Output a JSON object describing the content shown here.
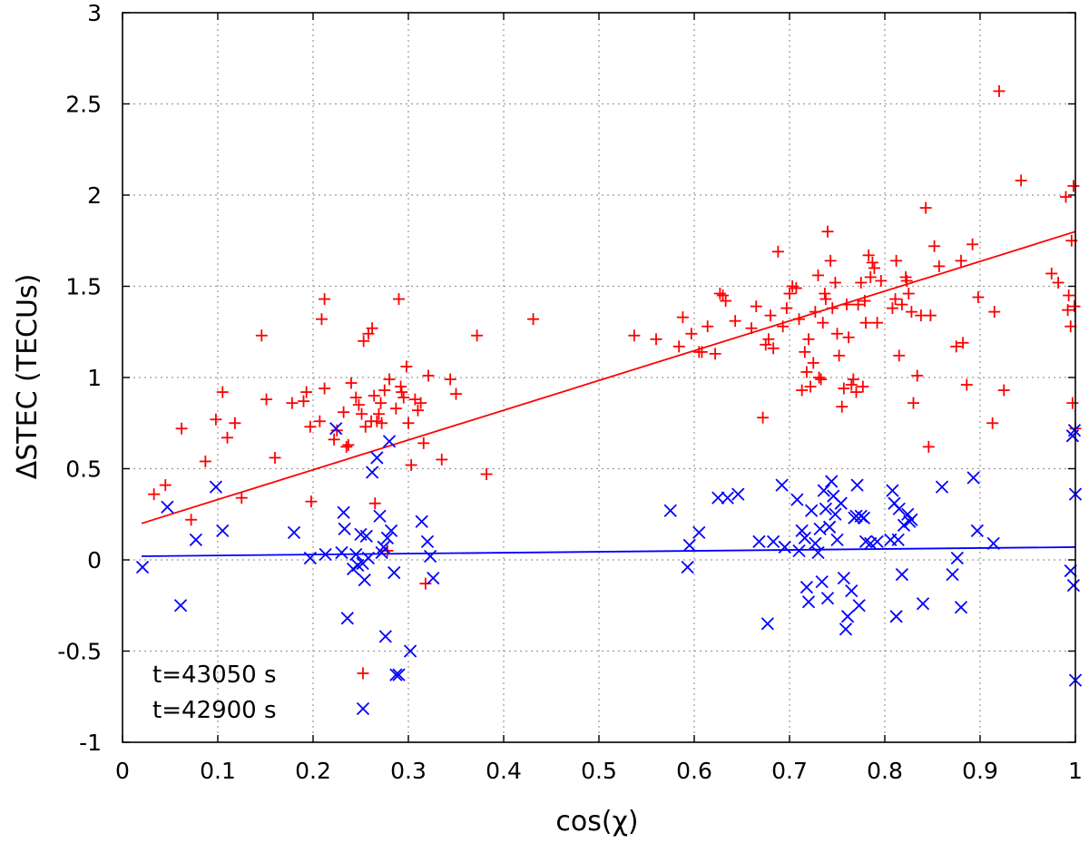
{
  "chart_data": {
    "type": "scatter",
    "title": "",
    "xlabel": "cos(χ)",
    "ylabel": "ΔSTEC (TECUs)",
    "xlim": [
      0,
      1
    ],
    "ylim": [
      -1,
      3
    ],
    "x_ticks": [
      "0",
      "0.1",
      "0.2",
      "0.3",
      "0.4",
      "0.5",
      "0.6",
      "0.7",
      "0.8",
      "0.9",
      "1"
    ],
    "y_ticks": [
      "-1",
      "-0.5",
      "0",
      "0.5",
      "1",
      "1.5",
      "2",
      "2.5",
      "3"
    ],
    "grid": true,
    "legend_position": "bottom-left",
    "series": [
      {
        "name": "t=43050 s",
        "marker": "plus",
        "color": "#ff0000",
        "fit_line": [
          [
            0.02,
            0.2
          ],
          [
            1.0,
            1.8
          ]
        ],
        "points": [
          [
            0.033,
            0.36
          ],
          [
            0.045,
            0.41
          ],
          [
            0.062,
            0.72
          ],
          [
            0.072,
            0.22
          ],
          [
            0.087,
            0.54
          ],
          [
            0.098,
            0.77
          ],
          [
            0.105,
            0.92
          ],
          [
            0.11,
            0.67
          ],
          [
            0.118,
            0.75
          ],
          [
            0.125,
            0.34
          ],
          [
            0.146,
            1.23
          ],
          [
            0.151,
            0.88
          ],
          [
            0.16,
            0.56
          ],
          [
            0.178,
            0.86
          ],
          [
            0.19,
            0.87
          ],
          [
            0.193,
            0.92
          ],
          [
            0.197,
            0.73
          ],
          [
            0.198,
            0.32
          ],
          [
            0.207,
            0.76
          ],
          [
            0.209,
            1.32
          ],
          [
            0.212,
            1.43
          ],
          [
            0.212,
            0.94
          ],
          [
            0.222,
            0.66
          ],
          [
            0.225,
            0.71
          ],
          [
            0.232,
            0.81
          ],
          [
            0.235,
            0.62
          ],
          [
            0.237,
            0.63
          ],
          [
            0.24,
            0.97
          ],
          [
            0.245,
            0.89
          ],
          [
            0.248,
            0.85
          ],
          [
            0.251,
            0.8
          ],
          [
            0.253,
            1.2
          ],
          [
            0.255,
            0.73
          ],
          [
            0.258,
            1.24
          ],
          [
            0.261,
            0.76
          ],
          [
            0.262,
            1.27
          ],
          [
            0.264,
            0.9
          ],
          [
            0.265,
            0.31
          ],
          [
            0.267,
            0.76
          ],
          [
            0.269,
            0.8
          ],
          [
            0.271,
            0.86
          ],
          [
            0.272,
            0.75
          ],
          [
            0.275,
            0.93
          ],
          [
            0.278,
            0.05
          ],
          [
            0.28,
            0.99
          ],
          [
            0.287,
            0.83
          ],
          [
            0.29,
            1.43
          ],
          [
            0.292,
            0.95
          ],
          [
            0.293,
            0.92
          ],
          [
            0.295,
            0.89
          ],
          [
            0.298,
            1.06
          ],
          [
            0.3,
            0.75
          ],
          [
            0.303,
            0.52
          ],
          [
            0.307,
            0.88
          ],
          [
            0.31,
            0.82
          ],
          [
            0.313,
            0.86
          ],
          [
            0.316,
            0.64
          ],
          [
            0.318,
            -0.13
          ],
          [
            0.321,
            1.01
          ],
          [
            0.335,
            0.55
          ],
          [
            0.344,
            0.99
          ],
          [
            0.35,
            0.91
          ],
          [
            0.372,
            1.23
          ],
          [
            0.382,
            0.47
          ],
          [
            0.431,
            1.32
          ],
          [
            0.537,
            1.23
          ],
          [
            0.56,
            1.21
          ],
          [
            0.584,
            1.17
          ],
          [
            0.588,
            1.33
          ],
          [
            0.597,
            1.24
          ],
          [
            0.605,
            1.14
          ],
          [
            0.608,
            1.14
          ],
          [
            0.614,
            1.28
          ],
          [
            0.622,
            1.13
          ],
          [
            0.627,
            1.46
          ],
          [
            0.63,
            1.45
          ],
          [
            0.633,
            1.42
          ],
          [
            0.643,
            1.31
          ],
          [
            0.66,
            1.27
          ],
          [
            0.665,
            1.39
          ],
          [
            0.672,
            0.78
          ],
          [
            0.675,
            1.18
          ],
          [
            0.678,
            1.21
          ],
          [
            0.68,
            1.34
          ],
          [
            0.683,
            1.16
          ],
          [
            0.688,
            1.69
          ],
          [
            0.693,
            1.28
          ],
          [
            0.697,
            1.38
          ],
          [
            0.7,
            1.46
          ],
          [
            0.703,
            1.5
          ],
          [
            0.707,
            1.49
          ],
          [
            0.71,
            1.32
          ],
          [
            0.713,
            0.93
          ],
          [
            0.716,
            1.14
          ],
          [
            0.718,
            1.03
          ],
          [
            0.72,
            1.21
          ],
          [
            0.722,
            0.95
          ],
          [
            0.725,
            1.08
          ],
          [
            0.727,
            1.36
          ],
          [
            0.73,
            1.56
          ],
          [
            0.731,
            1.0
          ],
          [
            0.733,
            0.99
          ],
          [
            0.735,
            1.3
          ],
          [
            0.737,
            1.46
          ],
          [
            0.738,
            1.43
          ],
          [
            0.74,
            1.8
          ],
          [
            0.743,
            1.64
          ],
          [
            0.745,
            1.38
          ],
          [
            0.748,
            1.52
          ],
          [
            0.75,
            1.24
          ],
          [
            0.752,
            1.12
          ],
          [
            0.755,
            0.84
          ],
          [
            0.757,
            0.94
          ],
          [
            0.76,
            1.4
          ],
          [
            0.762,
            1.22
          ],
          [
            0.765,
            0.96
          ],
          [
            0.767,
            0.99
          ],
          [
            0.77,
            0.92
          ],
          [
            0.772,
            1.4
          ],
          [
            0.775,
            1.52
          ],
          [
            0.777,
            0.95
          ],
          [
            0.779,
            1.42
          ],
          [
            0.78,
            1.3
          ],
          [
            0.783,
            1.67
          ],
          [
            0.785,
            1.55
          ],
          [
            0.787,
            1.63
          ],
          [
            0.789,
            1.6
          ],
          [
            0.792,
            1.3
          ],
          [
            0.796,
            1.53
          ],
          [
            0.808,
            1.38
          ],
          [
            0.811,
            1.43
          ],
          [
            0.812,
            1.64
          ],
          [
            0.815,
            1.12
          ],
          [
            0.818,
            1.4
          ],
          [
            0.822,
            1.55
          ],
          [
            0.823,
            1.53
          ],
          [
            0.825,
            1.46
          ],
          [
            0.828,
            1.36
          ],
          [
            0.83,
            0.86
          ],
          [
            0.834,
            1.01
          ],
          [
            0.838,
            1.34
          ],
          [
            0.843,
            1.93
          ],
          [
            0.846,
            0.62
          ],
          [
            0.848,
            1.34
          ],
          [
            0.852,
            1.72
          ],
          [
            0.857,
            1.61
          ],
          [
            0.875,
            1.17
          ],
          [
            0.88,
            1.64
          ],
          [
            0.882,
            1.19
          ],
          [
            0.886,
            0.96
          ],
          [
            0.892,
            1.73
          ],
          [
            0.898,
            1.44
          ],
          [
            0.913,
            0.75
          ],
          [
            0.915,
            1.36
          ],
          [
            0.92,
            2.57
          ],
          [
            0.925,
            0.93
          ],
          [
            0.943,
            2.08
          ],
          [
            0.975,
            1.57
          ],
          [
            0.982,
            1.52
          ],
          [
            0.99,
            1.99
          ],
          [
            0.992,
            1.37
          ],
          [
            0.993,
            1.45
          ],
          [
            0.995,
            1.28
          ],
          [
            0.996,
            1.75
          ],
          [
            0.997,
            0.86
          ],
          [
            0.998,
            2.05
          ],
          [
            0.999,
            1.39
          ],
          [
            1.0,
            0.72
          ]
        ]
      },
      {
        "name": "t=42900 s",
        "marker": "cross",
        "color": "#0000ff",
        "fit_line": [
          [
            0.02,
            0.02
          ],
          [
            1.0,
            0.07
          ]
        ],
        "points": [
          [
            0.021,
            -0.04
          ],
          [
            0.047,
            0.29
          ],
          [
            0.061,
            -0.25
          ],
          [
            0.077,
            0.11
          ],
          [
            0.098,
            0.4
          ],
          [
            0.105,
            0.16
          ],
          [
            0.18,
            0.15
          ],
          [
            0.197,
            0.01
          ],
          [
            0.213,
            0.03
          ],
          [
            0.224,
            0.72
          ],
          [
            0.23,
            0.04
          ],
          [
            0.232,
            0.26
          ],
          [
            0.233,
            0.17
          ],
          [
            0.236,
            -0.32
          ],
          [
            0.242,
            -0.05
          ],
          [
            0.245,
            0.03
          ],
          [
            0.247,
            -0.03
          ],
          [
            0.25,
            0.14
          ],
          [
            0.252,
            -0.02
          ],
          [
            0.254,
            -0.11
          ],
          [
            0.256,
            0.13
          ],
          [
            0.258,
            0.01
          ],
          [
            0.262,
            0.48
          ],
          [
            0.267,
            0.56
          ],
          [
            0.27,
            0.24
          ],
          [
            0.272,
            0.04
          ],
          [
            0.274,
            0.07
          ],
          [
            0.276,
            -0.42
          ],
          [
            0.278,
            0.12
          ],
          [
            0.28,
            0.65
          ],
          [
            0.282,
            0.16
          ],
          [
            0.285,
            -0.07
          ],
          [
            0.287,
            -0.63
          ],
          [
            0.29,
            -0.63
          ],
          [
            0.302,
            -0.5
          ],
          [
            0.314,
            0.21
          ],
          [
            0.32,
            0.1
          ],
          [
            0.323,
            0.02
          ],
          [
            0.326,
            -0.1
          ],
          [
            0.575,
            0.27
          ],
          [
            0.593,
            -0.04
          ],
          [
            0.595,
            0.08
          ],
          [
            0.605,
            0.15
          ],
          [
            0.625,
            0.34
          ],
          [
            0.635,
            0.34
          ],
          [
            0.646,
            0.36
          ],
          [
            0.668,
            0.1
          ],
          [
            0.677,
            -0.35
          ],
          [
            0.683,
            0.1
          ],
          [
            0.692,
            0.41
          ],
          [
            0.695,
            0.07
          ],
          [
            0.708,
            0.33
          ],
          [
            0.71,
            0.05
          ],
          [
            0.713,
            0.16
          ],
          [
            0.716,
            0.12
          ],
          [
            0.718,
            -0.15
          ],
          [
            0.72,
            -0.23
          ],
          [
            0.723,
            0.27
          ],
          [
            0.727,
            0.09
          ],
          [
            0.73,
            0.04
          ],
          [
            0.732,
            0.17
          ],
          [
            0.734,
            -0.12
          ],
          [
            0.736,
            0.38
          ],
          [
            0.738,
            0.28
          ],
          [
            0.74,
            -0.21
          ],
          [
            0.742,
            0.18
          ],
          [
            0.744,
            0.43
          ],
          [
            0.746,
            0.35
          ],
          [
            0.748,
            0.25
          ],
          [
            0.75,
            0.11
          ],
          [
            0.754,
            0.31
          ],
          [
            0.757,
            -0.1
          ],
          [
            0.759,
            -0.38
          ],
          [
            0.761,
            -0.31
          ],
          [
            0.765,
            -0.17
          ],
          [
            0.768,
            0.23
          ],
          [
            0.77,
            0.24
          ],
          [
            0.771,
            0.41
          ],
          [
            0.773,
            -0.25
          ],
          [
            0.775,
            0.24
          ],
          [
            0.778,
            0.23
          ],
          [
            0.78,
            0.1
          ],
          [
            0.785,
            0.09
          ],
          [
            0.792,
            0.1
          ],
          [
            0.806,
            0.11
          ],
          [
            0.808,
            0.38
          ],
          [
            0.81,
            0.31
          ],
          [
            0.812,
            -0.31
          ],
          [
            0.814,
            0.11
          ],
          [
            0.815,
            0.28
          ],
          [
            0.818,
            -0.08
          ],
          [
            0.82,
            0.19
          ],
          [
            0.824,
            0.25
          ],
          [
            0.826,
            0.21
          ],
          [
            0.828,
            0.22
          ],
          [
            0.84,
            -0.24
          ],
          [
            0.86,
            0.4
          ],
          [
            0.871,
            -0.08
          ],
          [
            0.876,
            0.01
          ],
          [
            0.88,
            -0.26
          ],
          [
            0.893,
            0.45
          ],
          [
            0.897,
            0.16
          ],
          [
            0.914,
            0.09
          ],
          [
            0.995,
            -0.06
          ],
          [
            0.997,
            0.68
          ],
          [
            0.998,
            -0.14
          ],
          [
            0.999,
            0.71
          ],
          [
            1.0,
            0.36
          ],
          [
            1.0,
            -0.66
          ]
        ]
      }
    ]
  }
}
